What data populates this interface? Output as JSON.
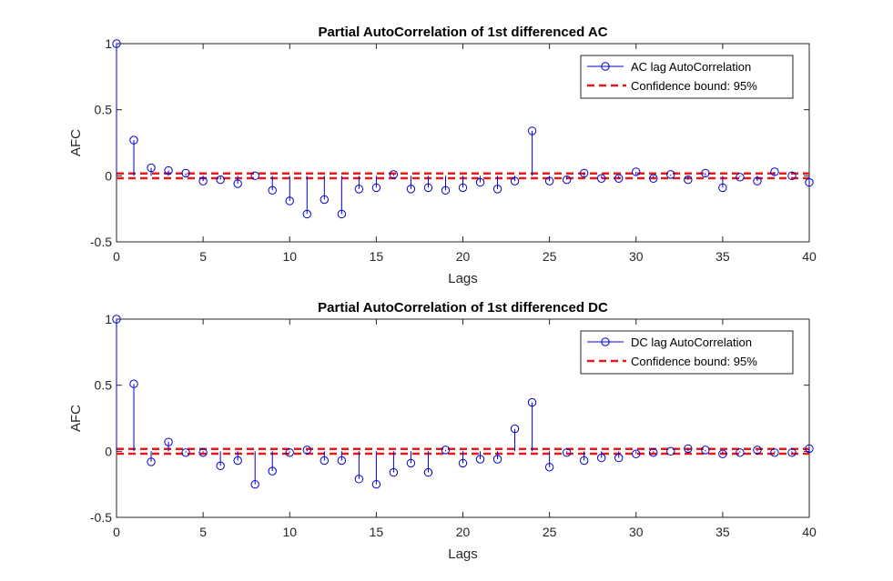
{
  "colors": {
    "stem": "#0000CC",
    "confidence": "#E41A1C",
    "axis": "#262626",
    "legend_border": "#262626"
  },
  "chart_data": [
    {
      "type": "stem",
      "title": "Partial AutoCorrelation of 1st differenced AC",
      "xlabel": "Lags",
      "ylabel": "AFC",
      "xlim": [
        0,
        40
      ],
      "ylim": [
        -0.5,
        1
      ],
      "xticks": [
        "0",
        "5",
        "10",
        "15",
        "20",
        "25",
        "30",
        "35",
        "40"
      ],
      "yticks": [
        "-0.5",
        "0",
        "0.5",
        "1"
      ],
      "legend_position": "top-right",
      "series": [
        {
          "name": "AC lag AutoCorrelation",
          "style": "stem-circle",
          "x": [
            0,
            1,
            2,
            3,
            4,
            5,
            6,
            7,
            8,
            9,
            10,
            11,
            12,
            13,
            14,
            15,
            16,
            17,
            18,
            19,
            20,
            21,
            22,
            23,
            24,
            25,
            26,
            27,
            28,
            29,
            30,
            31,
            32,
            33,
            34,
            35,
            36,
            37,
            38,
            39,
            40
          ],
          "values": [
            1.0,
            0.27,
            0.06,
            0.04,
            0.02,
            -0.04,
            -0.03,
            -0.06,
            0.0,
            -0.11,
            -0.19,
            -0.29,
            -0.18,
            -0.29,
            -0.1,
            -0.09,
            0.01,
            -0.1,
            -0.09,
            -0.11,
            -0.09,
            -0.05,
            -0.1,
            -0.04,
            0.34,
            -0.04,
            -0.03,
            0.02,
            -0.02,
            -0.02,
            0.03,
            -0.02,
            0.01,
            -0.03,
            0.02,
            -0.09,
            -0.01,
            -0.04,
            0.03,
            0.0,
            -0.05
          ]
        },
        {
          "name": "Confidence bound: 95%",
          "style": "dashed",
          "bounds": [
            0.018,
            -0.018
          ]
        }
      ]
    },
    {
      "type": "stem",
      "title": "Partial AutoCorrelation of 1st differenced DC",
      "xlabel": "Lags",
      "ylabel": "AFC",
      "xlim": [
        0,
        40
      ],
      "ylim": [
        -0.5,
        1
      ],
      "xticks": [
        "0",
        "5",
        "10",
        "15",
        "20",
        "25",
        "30",
        "35",
        "40"
      ],
      "yticks": [
        "-0.5",
        "0",
        "0.5",
        "1"
      ],
      "legend_position": "top-right",
      "series": [
        {
          "name": "DC lag AutoCorrelation",
          "style": "stem-circle",
          "x": [
            0,
            1,
            2,
            3,
            4,
            5,
            6,
            7,
            8,
            9,
            10,
            11,
            12,
            13,
            14,
            15,
            16,
            17,
            18,
            19,
            20,
            21,
            22,
            23,
            24,
            25,
            26,
            27,
            28,
            29,
            30,
            31,
            32,
            33,
            34,
            35,
            36,
            37,
            38,
            39,
            40
          ],
          "values": [
            1.0,
            0.51,
            -0.08,
            0.07,
            -0.01,
            -0.01,
            -0.11,
            -0.07,
            -0.25,
            -0.15,
            -0.01,
            0.01,
            -0.07,
            -0.07,
            -0.21,
            -0.25,
            -0.16,
            -0.09,
            -0.16,
            0.01,
            -0.09,
            -0.06,
            -0.06,
            0.17,
            0.37,
            -0.12,
            -0.01,
            -0.07,
            -0.05,
            -0.05,
            -0.02,
            -0.01,
            0.0,
            0.02,
            0.01,
            -0.02,
            -0.01,
            0.01,
            -0.01,
            -0.01,
            0.02
          ]
        },
        {
          "name": "Confidence bound: 95%",
          "style": "dashed",
          "bounds": [
            0.018,
            -0.018
          ]
        }
      ]
    }
  ]
}
